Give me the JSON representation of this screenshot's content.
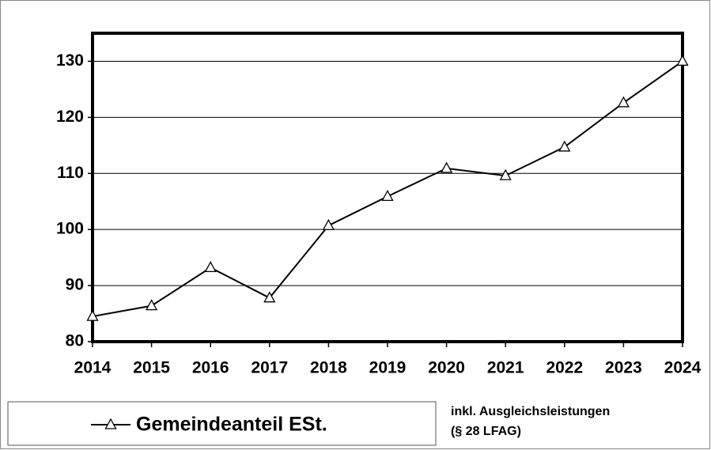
{
  "chart_data": {
    "type": "line",
    "categories": [
      "2014",
      "2015",
      "2016",
      "2017",
      "2018",
      "2019",
      "2020",
      "2021",
      "2022",
      "2023",
      "2024"
    ],
    "series": [
      {
        "name": "Gemeindeanteil ESt.",
        "color": "#000000",
        "marker": "triangle",
        "values": [
          84.5,
          86.4,
          93.2,
          87.8,
          100.7,
          105.9,
          110.9,
          109.6,
          114.7,
          122.6,
          130
        ]
      }
    ],
    "ylim": [
      80,
      135
    ],
    "yticks": [
      80,
      90,
      100,
      110,
      120,
      130
    ],
    "grid": true,
    "annotation": [
      "inkl. Ausgleichsleistungen",
      "(§ 28 LFAG)"
    ]
  }
}
